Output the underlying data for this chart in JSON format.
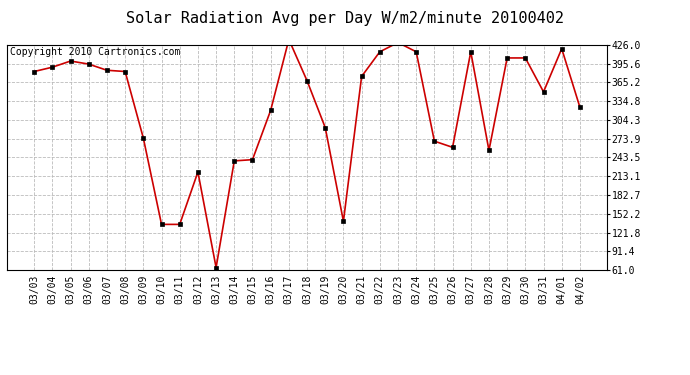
{
  "title": "Solar Radiation Avg per Day W/m2/minute 20100402",
  "copyright": "Copyright 2010 Cartronics.com",
  "dates": [
    "03/03",
    "03/04",
    "03/05",
    "03/06",
    "03/07",
    "03/08",
    "03/09",
    "03/10",
    "03/11",
    "03/12",
    "03/13",
    "03/14",
    "03/15",
    "03/16",
    "03/17",
    "03/18",
    "03/19",
    "03/20",
    "03/21",
    "03/22",
    "03/23",
    "03/24",
    "03/25",
    "03/26",
    "03/27",
    "03/28",
    "03/29",
    "03/30",
    "03/31",
    "04/01",
    "04/02"
  ],
  "values": [
    383,
    390,
    400,
    395,
    385,
    383,
    275,
    135,
    135,
    220,
    65,
    238,
    240,
    320,
    435,
    368,
    292,
    140,
    375,
    415,
    430,
    415,
    270,
    260,
    415,
    255,
    405,
    405,
    350,
    420,
    325
  ],
  "line_color": "#cc0000",
  "marker_color": "#000000",
  "bg_color": "#ffffff",
  "plot_bg_color": "#ffffff",
  "grid_color": "#bbbbbb",
  "yticks": [
    61.0,
    91.4,
    121.8,
    152.2,
    182.7,
    213.1,
    243.5,
    273.9,
    304.3,
    334.8,
    365.2,
    395.6,
    426.0
  ],
  "ylim": [
    61.0,
    426.0
  ],
  "title_fontsize": 11,
  "axis_fontsize": 7,
  "copyright_fontsize": 7,
  "figwidth": 6.9,
  "figheight": 3.75,
  "dpi": 100
}
